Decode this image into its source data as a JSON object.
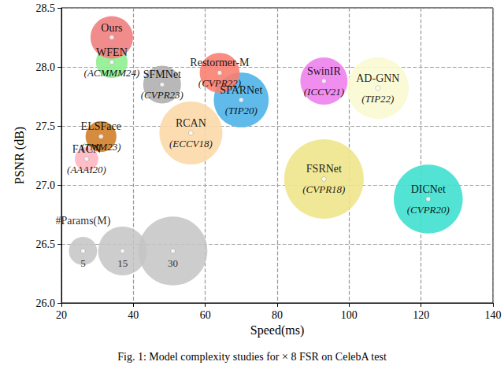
{
  "chart_data": {
    "type": "scatter",
    "caption": "Fig. 1: Model complexity studies for × 8 FSR on CelebA test",
    "x_label": "Speed(ms)",
    "y_label": "PSNR (dB)",
    "xlim": [
      20,
      140
    ],
    "xticks": [
      20,
      40,
      60,
      80,
      100,
      120,
      140
    ],
    "ylim": [
      26,
      28.5
    ],
    "yticks": [
      {
        "value": 26,
        "label": "26.0"
      },
      26.5,
      {
        "value": 27,
        "label": "27.0"
      },
      27.5,
      {
        "value": 28,
        "label": "28.0"
      },
      28.5
    ],
    "grid": true,
    "points": [
      {
        "name": "FSRNet",
        "venue": "(CVPR18)",
        "x": 93,
        "y": 27.05,
        "params": 40,
        "color": "#f0e68c"
      },
      {
        "name": "DICNet",
        "venue": "(CVPR20)",
        "x": 122,
        "y": 26.88,
        "params": 30,
        "color": "#40e0d0"
      },
      {
        "name": "RCAN",
        "venue": "(ECCV18)",
        "x": 56,
        "y": 27.44,
        "params": 25,
        "color": "#fcd9a8"
      },
      {
        "name": "AD-GNN",
        "venue": "(TIP22)",
        "x": 108,
        "y": 27.82,
        "params": 24,
        "color": "#fafad2"
      },
      {
        "name": "SPARNet",
        "venue": "(TIP20)",
        "x": 70,
        "y": 27.72,
        "params": 19,
        "color": "#4fb3e8"
      },
      {
        "name": "SwinIR",
        "venue": "(ICCV21)",
        "x": 93,
        "y": 27.88,
        "params": 14,
        "color": "#ee82ee"
      },
      {
        "name": "Restormer-M",
        "venue": "(CVPR22)",
        "x": 64,
        "y": 27.95,
        "params": 10,
        "color": "#fa8072"
      },
      {
        "name": "SFMNet",
        "venue": "(CVPR23)",
        "x": 48,
        "y": 27.85,
        "params": 9,
        "color": "#b0b0b0"
      },
      {
        "name": "WFEN",
        "venue": "(ACMMM24)",
        "x": 34,
        "y": 28.04,
        "params": 6.3,
        "color": "#90ee90"
      },
      {
        "name": "Ours",
        "x": 34,
        "y": 28.25,
        "params": 11.4,
        "color": "#f08080"
      },
      {
        "name": "ELSFace",
        "venue": "(TMM23)",
        "x": 31,
        "y": 27.41,
        "params": 6,
        "color": "#d2802a"
      },
      {
        "name": "FACN",
        "venue": "(AAAI20)",
        "x": 27,
        "y": 27.22,
        "params": 3.5,
        "color": "#ffb6c1"
      }
    ],
    "size_legend": {
      "title": "#Params(M)",
      "x": [
        26,
        37,
        51
      ],
      "y": [
        26.44,
        26.44,
        26.44
      ],
      "params": [
        5,
        15,
        30
      ]
    }
  }
}
